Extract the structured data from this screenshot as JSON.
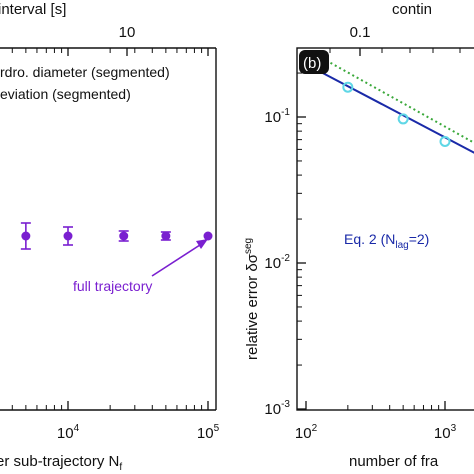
{
  "colors": {
    "purple": "#7a1fd0",
    "navy": "#1a2aa8",
    "cyan": "#5fd7e6",
    "green": "#3aa83a",
    "black": "#111111"
  },
  "chart_data": [
    {
      "type": "scatter",
      "panel": "a (cropped)",
      "top_axis_label": "interval [s]",
      "top_tick_labels": [
        "10"
      ],
      "xlabel": "er sub-trajectory N",
      "xlabel_subscript": "f",
      "x_scale": "log",
      "x_tick_labels": [
        {
          "base": "10",
          "exp": "4"
        },
        {
          "base": "10",
          "exp": "5"
        }
      ],
      "legend": [
        "rdro. diameter (segmented)",
        "eviation (segmented)"
      ],
      "annotation": "full trajectory",
      "series": [
        {
          "marker": "filled-circle",
          "color": "purple",
          "points": [
            {
              "x": 5000,
              "y": 1.0,
              "err": 0.13
            },
            {
              "x": 10000,
              "y": 1.0,
              "err": 0.09
            },
            {
              "x": 25000,
              "y": 1.0,
              "err": 0.05
            },
            {
              "x": 50000,
              "y": 1.0,
              "err": 0.04
            },
            {
              "x": 100000,
              "y": 1.0,
              "err": 0
            }
          ]
        }
      ]
    },
    {
      "type": "line",
      "panel": "b",
      "panel_label": "(b)",
      "top_axis_label": "contin",
      "top_tick_labels": [
        "0.1"
      ],
      "xlabel": "number of fra",
      "ylabel": "relative error δσ",
      "ylabel_superscript": "seg",
      "x_scale": "log",
      "y_scale": "log",
      "xlim": [
        100,
        2100
      ],
      "ylim": [
        0.001,
        0.3
      ],
      "x_tick_labels": [
        {
          "base": "10",
          "exp": "2"
        },
        {
          "base": "10",
          "exp": "3"
        }
      ],
      "y_tick_labels": [
        {
          "base": "10",
          "exp": "-1"
        },
        {
          "base": "10",
          "exp": "-2"
        },
        {
          "base": "10",
          "exp": "-3"
        }
      ],
      "annotation": "Eq. 2 (N",
      "annotation_sub": "lag",
      "annotation_tail": "=2)",
      "series": [
        {
          "style": "solid-line",
          "color": "navy",
          "points": [
            [
              120,
              0.21
            ],
            [
              2100,
              0.05
            ]
          ]
        },
        {
          "style": "dotted-line",
          "color": "green",
          "points": [
            [
              150,
              0.235
            ],
            [
              2100,
              0.058
            ]
          ]
        },
        {
          "style": "open-circle",
          "color": "cyan",
          "points": [
            [
              200,
              0.16
            ],
            [
              500,
              0.097
            ],
            [
              1000,
              0.068
            ]
          ]
        }
      ]
    }
  ]
}
